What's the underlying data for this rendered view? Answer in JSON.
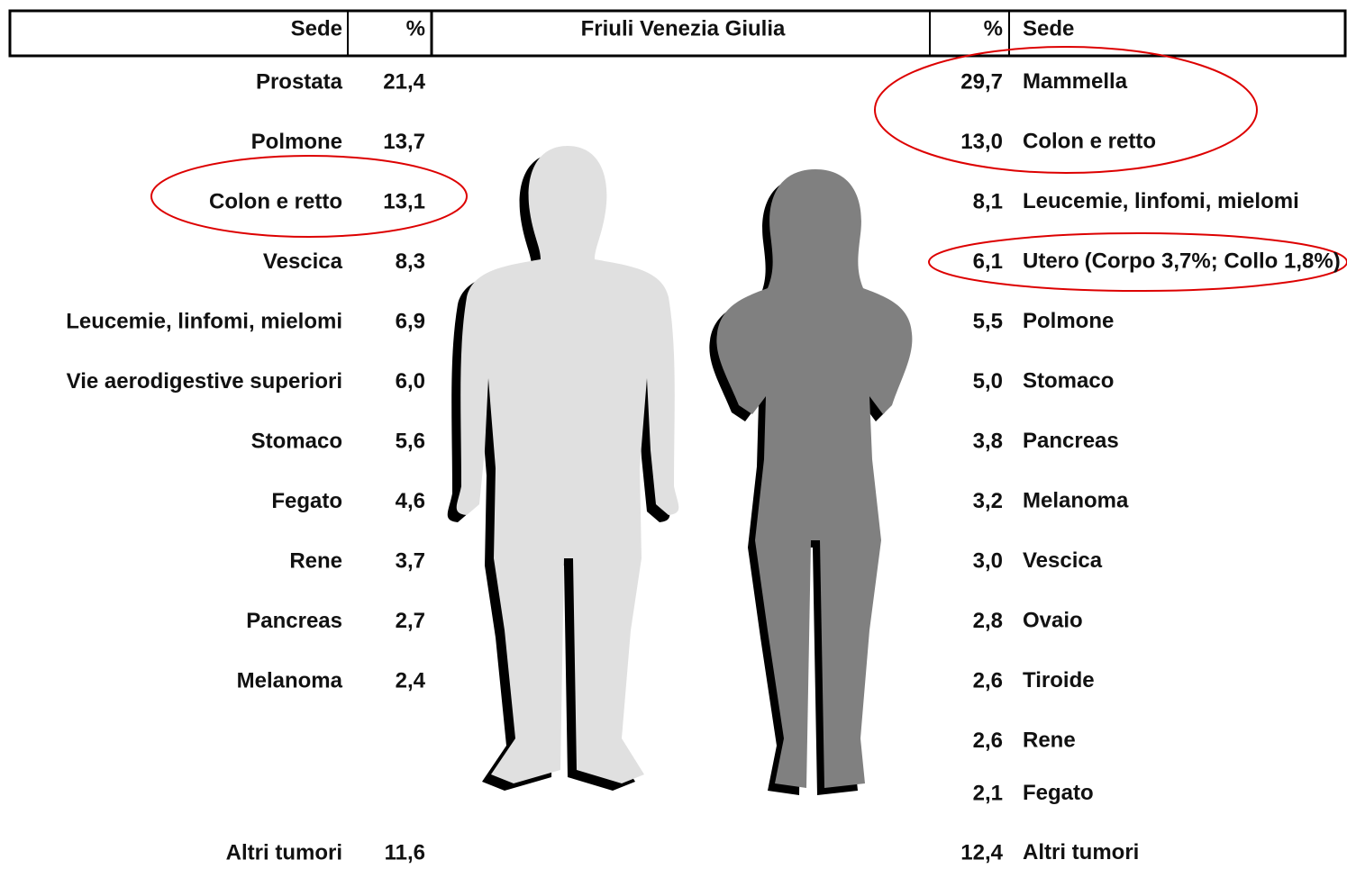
{
  "header": {
    "sede_left": "Sede",
    "pct_left": "%",
    "title": "Friuli Venezia Giulia",
    "pct_right": "%",
    "sede_right": "Sede"
  },
  "male": [
    {
      "site": "Prostata",
      "pct": "21,4"
    },
    {
      "site": "Polmone",
      "pct": "13,7"
    },
    {
      "site": "Colon e retto",
      "pct": "13,1"
    },
    {
      "site": "Vescica",
      "pct": "8,3"
    },
    {
      "site": "Leucemie, linfomi, mielomi",
      "pct": "6,9"
    },
    {
      "site": "Vie aerodigestive superiori",
      "pct": "6,0"
    },
    {
      "site": "Stomaco",
      "pct": "5,6"
    },
    {
      "site": "Fegato",
      "pct": "4,6"
    },
    {
      "site": "Rene",
      "pct": "3,7"
    },
    {
      "site": "Pancreas",
      "pct": "2,7"
    },
    {
      "site": "Melanoma",
      "pct": "2,4"
    },
    {
      "site": "Altri tumori",
      "pct": "11,6"
    }
  ],
  "female": [
    {
      "site": "Mammella",
      "pct": "29,7"
    },
    {
      "site": "Colon e retto",
      "pct": "13,0"
    },
    {
      "site": "Leucemie, linfomi, mielomi",
      "pct": "8,1"
    },
    {
      "site": "Utero",
      "pct": "6,1",
      "note": "(Corpo 3,7%; Collo 1,8%)"
    },
    {
      "site": "Polmone",
      "pct": "5,5"
    },
    {
      "site": "Stomaco",
      "pct": "5,0"
    },
    {
      "site": "Pancreas",
      "pct": "3,8"
    },
    {
      "site": "Melanoma",
      "pct": "3,2"
    },
    {
      "site": "Vescica",
      "pct": "3,0"
    },
    {
      "site": "Ovaio",
      "pct": "2,8"
    },
    {
      "site": "Tiroide",
      "pct": "2,6"
    },
    {
      "site": "Rene",
      "pct": "2,6"
    },
    {
      "site": "Fegato",
      "pct": "2,1"
    },
    {
      "site": "Altri tumori",
      "pct": "12,4"
    }
  ]
}
